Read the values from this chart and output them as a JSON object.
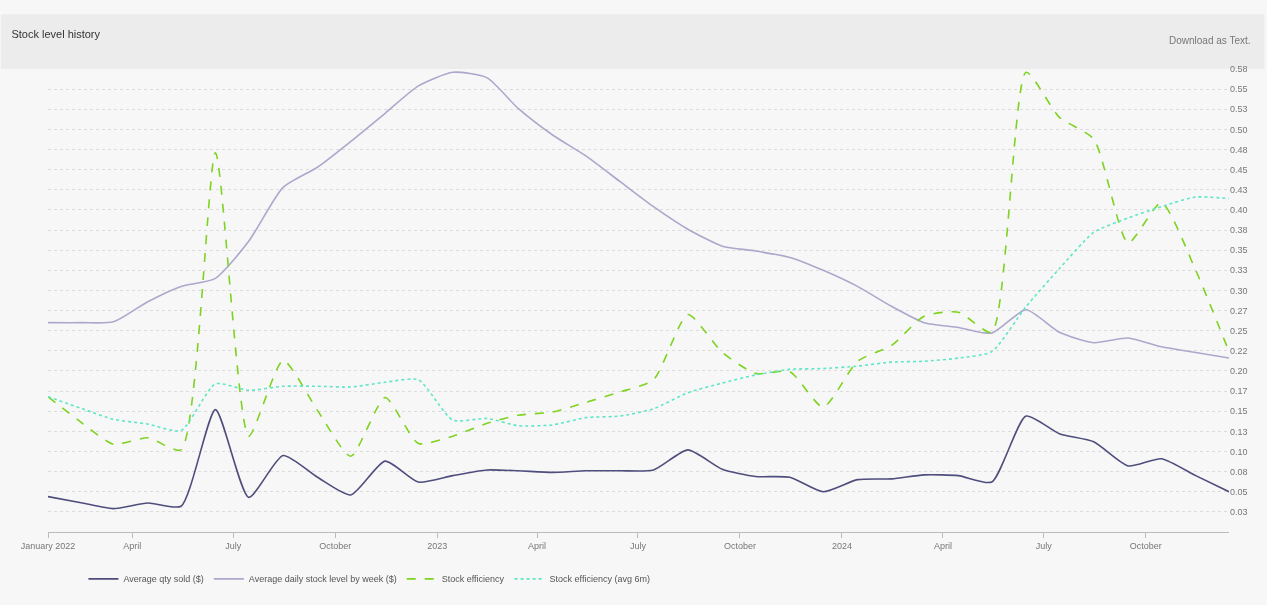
{
  "chart_data": {
    "type": "line",
    "title": "Stock level history",
    "annotations": [
      "Download as Text."
    ],
    "x": [
      "2022-01-15",
      "2022-02-15",
      "2022-03-15",
      "2022-04-15",
      "2022-05-15",
      "2022-06-15",
      "2022-07-15",
      "2022-08-15",
      "2022-09-15",
      "2022-10-15",
      "2022-11-15",
      "2022-12-15",
      "2023-01-15",
      "2023-02-15",
      "2023-03-15",
      "2023-04-15",
      "2023-05-15",
      "2023-06-15",
      "2023-07-15",
      "2023-08-15",
      "2023-09-15",
      "2023-10-15",
      "2023-11-15",
      "2023-12-15",
      "2024-01-15",
      "2024-02-15",
      "2024-03-15",
      "2024-04-15",
      "2024-05-15",
      "2024-06-15",
      "2024-07-15",
      "2024-08-15",
      "2024-09-15",
      "2024-10-15",
      "2024-11-15",
      "2024-12-15"
    ],
    "series": [
      {
        "name": "Average qty sold ($)",
        "color": "#4e4d7c",
        "line_style": "solid",
        "values": [
          0.044,
          0.036,
          0.029,
          0.036,
          0.032,
          0.152,
          0.043,
          0.095,
          0.068,
          0.046,
          0.088,
          0.062,
          0.07,
          0.077,
          0.076,
          0.074,
          0.076,
          0.076,
          0.077,
          0.102,
          0.078,
          0.069,
          0.068,
          0.05,
          0.065,
          0.066,
          0.071,
          0.07,
          0.062,
          0.144,
          0.122,
          0.112,
          0.082,
          0.091,
          0.07,
          0.05
        ]
      },
      {
        "name": "Average daily stock level by week ($)",
        "color": "#aba8cc",
        "line_style": "solid",
        "values": [
          0.26,
          0.26,
          0.261,
          0.286,
          0.305,
          0.315,
          0.361,
          0.428,
          0.453,
          0.485,
          0.52,
          0.554,
          0.571,
          0.564,
          0.526,
          0.493,
          0.467,
          0.435,
          0.404,
          0.376,
          0.355,
          0.349,
          0.341,
          0.325,
          0.305,
          0.28,
          0.26,
          0.254,
          0.247,
          0.276,
          0.248,
          0.235,
          0.241,
          0.23,
          0.223,
          0.216
        ]
      },
      {
        "name": "Stock efficiency",
        "color": "#7ed321",
        "line_style": "dashed",
        "values": [
          0.168,
          0.135,
          0.109,
          0.117,
          0.102,
          0.471,
          0.119,
          0.213,
          0.151,
          0.094,
          0.167,
          0.11,
          0.119,
          0.135,
          0.145,
          0.149,
          0.161,
          0.174,
          0.189,
          0.27,
          0.223,
          0.197,
          0.199,
          0.155,
          0.212,
          0.232,
          0.268,
          0.273,
          0.248,
          0.571,
          0.515,
          0.488,
          0.359,
          0.409,
          0.325,
          0.224
        ]
      },
      {
        "name": "Stock efficiency (avg 6m)",
        "color": "#5ee6c6",
        "line_style": "dotted",
        "values": [
          0.168,
          0.153,
          0.14,
          0.134,
          0.126,
          0.184,
          0.176,
          0.181,
          0.181,
          0.18,
          0.186,
          0.189,
          0.139,
          0.141,
          0.132,
          0.133,
          0.142,
          0.144,
          0.153,
          0.173,
          0.185,
          0.195,
          0.202,
          0.203,
          0.206,
          0.211,
          0.212,
          0.216,
          0.224,
          0.28,
          0.327,
          0.372,
          0.39,
          0.404,
          0.416,
          0.414
        ]
      }
    ],
    "xlim": [
      "2022-01-15",
      "2024-12-15"
    ],
    "xticks": [
      {
        "value": "2022-01-15",
        "label": "January 2022"
      },
      {
        "value": "2022-04-01",
        "label": "April"
      },
      {
        "value": "2022-07-01",
        "label": "July"
      },
      {
        "value": "2022-10-01",
        "label": "October"
      },
      {
        "value": "2023-01-01",
        "label": "2023"
      },
      {
        "value": "2023-04-01",
        "label": "April"
      },
      {
        "value": "2023-07-01",
        "label": "July"
      },
      {
        "value": "2023-10-01",
        "label": "October"
      },
      {
        "value": "2024-01-01",
        "label": "2024"
      },
      {
        "value": "2024-04-01",
        "label": "April"
      },
      {
        "value": "2024-07-01",
        "label": "July"
      },
      {
        "value": "2024-10-01",
        "label": "October"
      }
    ],
    "ylim": [
      0,
      0.575
    ],
    "yticks": [
      {
        "value": 0.025,
        "label": "0.03"
      },
      {
        "value": 0.05,
        "label": "0.05"
      },
      {
        "value": 0.075,
        "label": "0.08"
      },
      {
        "value": 0.1,
        "label": "0.10"
      },
      {
        "value": 0.125,
        "label": "0.13"
      },
      {
        "value": 0.15,
        "label": "0.15"
      },
      {
        "value": 0.175,
        "label": "0.17"
      },
      {
        "value": 0.2,
        "label": "0.20"
      },
      {
        "value": 0.225,
        "label": "0.22"
      },
      {
        "value": 0.25,
        "label": "0.25"
      },
      {
        "value": 0.275,
        "label": "0.27"
      },
      {
        "value": 0.3,
        "label": "0.30"
      },
      {
        "value": 0.325,
        "label": "0.33"
      },
      {
        "value": 0.35,
        "label": "0.35"
      },
      {
        "value": 0.375,
        "label": "0.38"
      },
      {
        "value": 0.4,
        "label": "0.40"
      },
      {
        "value": 0.425,
        "label": "0.43"
      },
      {
        "value": 0.45,
        "label": "0.45"
      },
      {
        "value": 0.475,
        "label": "0.48"
      },
      {
        "value": 0.5,
        "label": "0.50"
      },
      {
        "value": 0.525,
        "label": "0.53"
      },
      {
        "value": 0.55,
        "label": "0.55"
      },
      {
        "value": 0.575,
        "label": "0.58"
      }
    ],
    "grid": "y",
    "legend": "bottom left",
    "marker": "none"
  }
}
